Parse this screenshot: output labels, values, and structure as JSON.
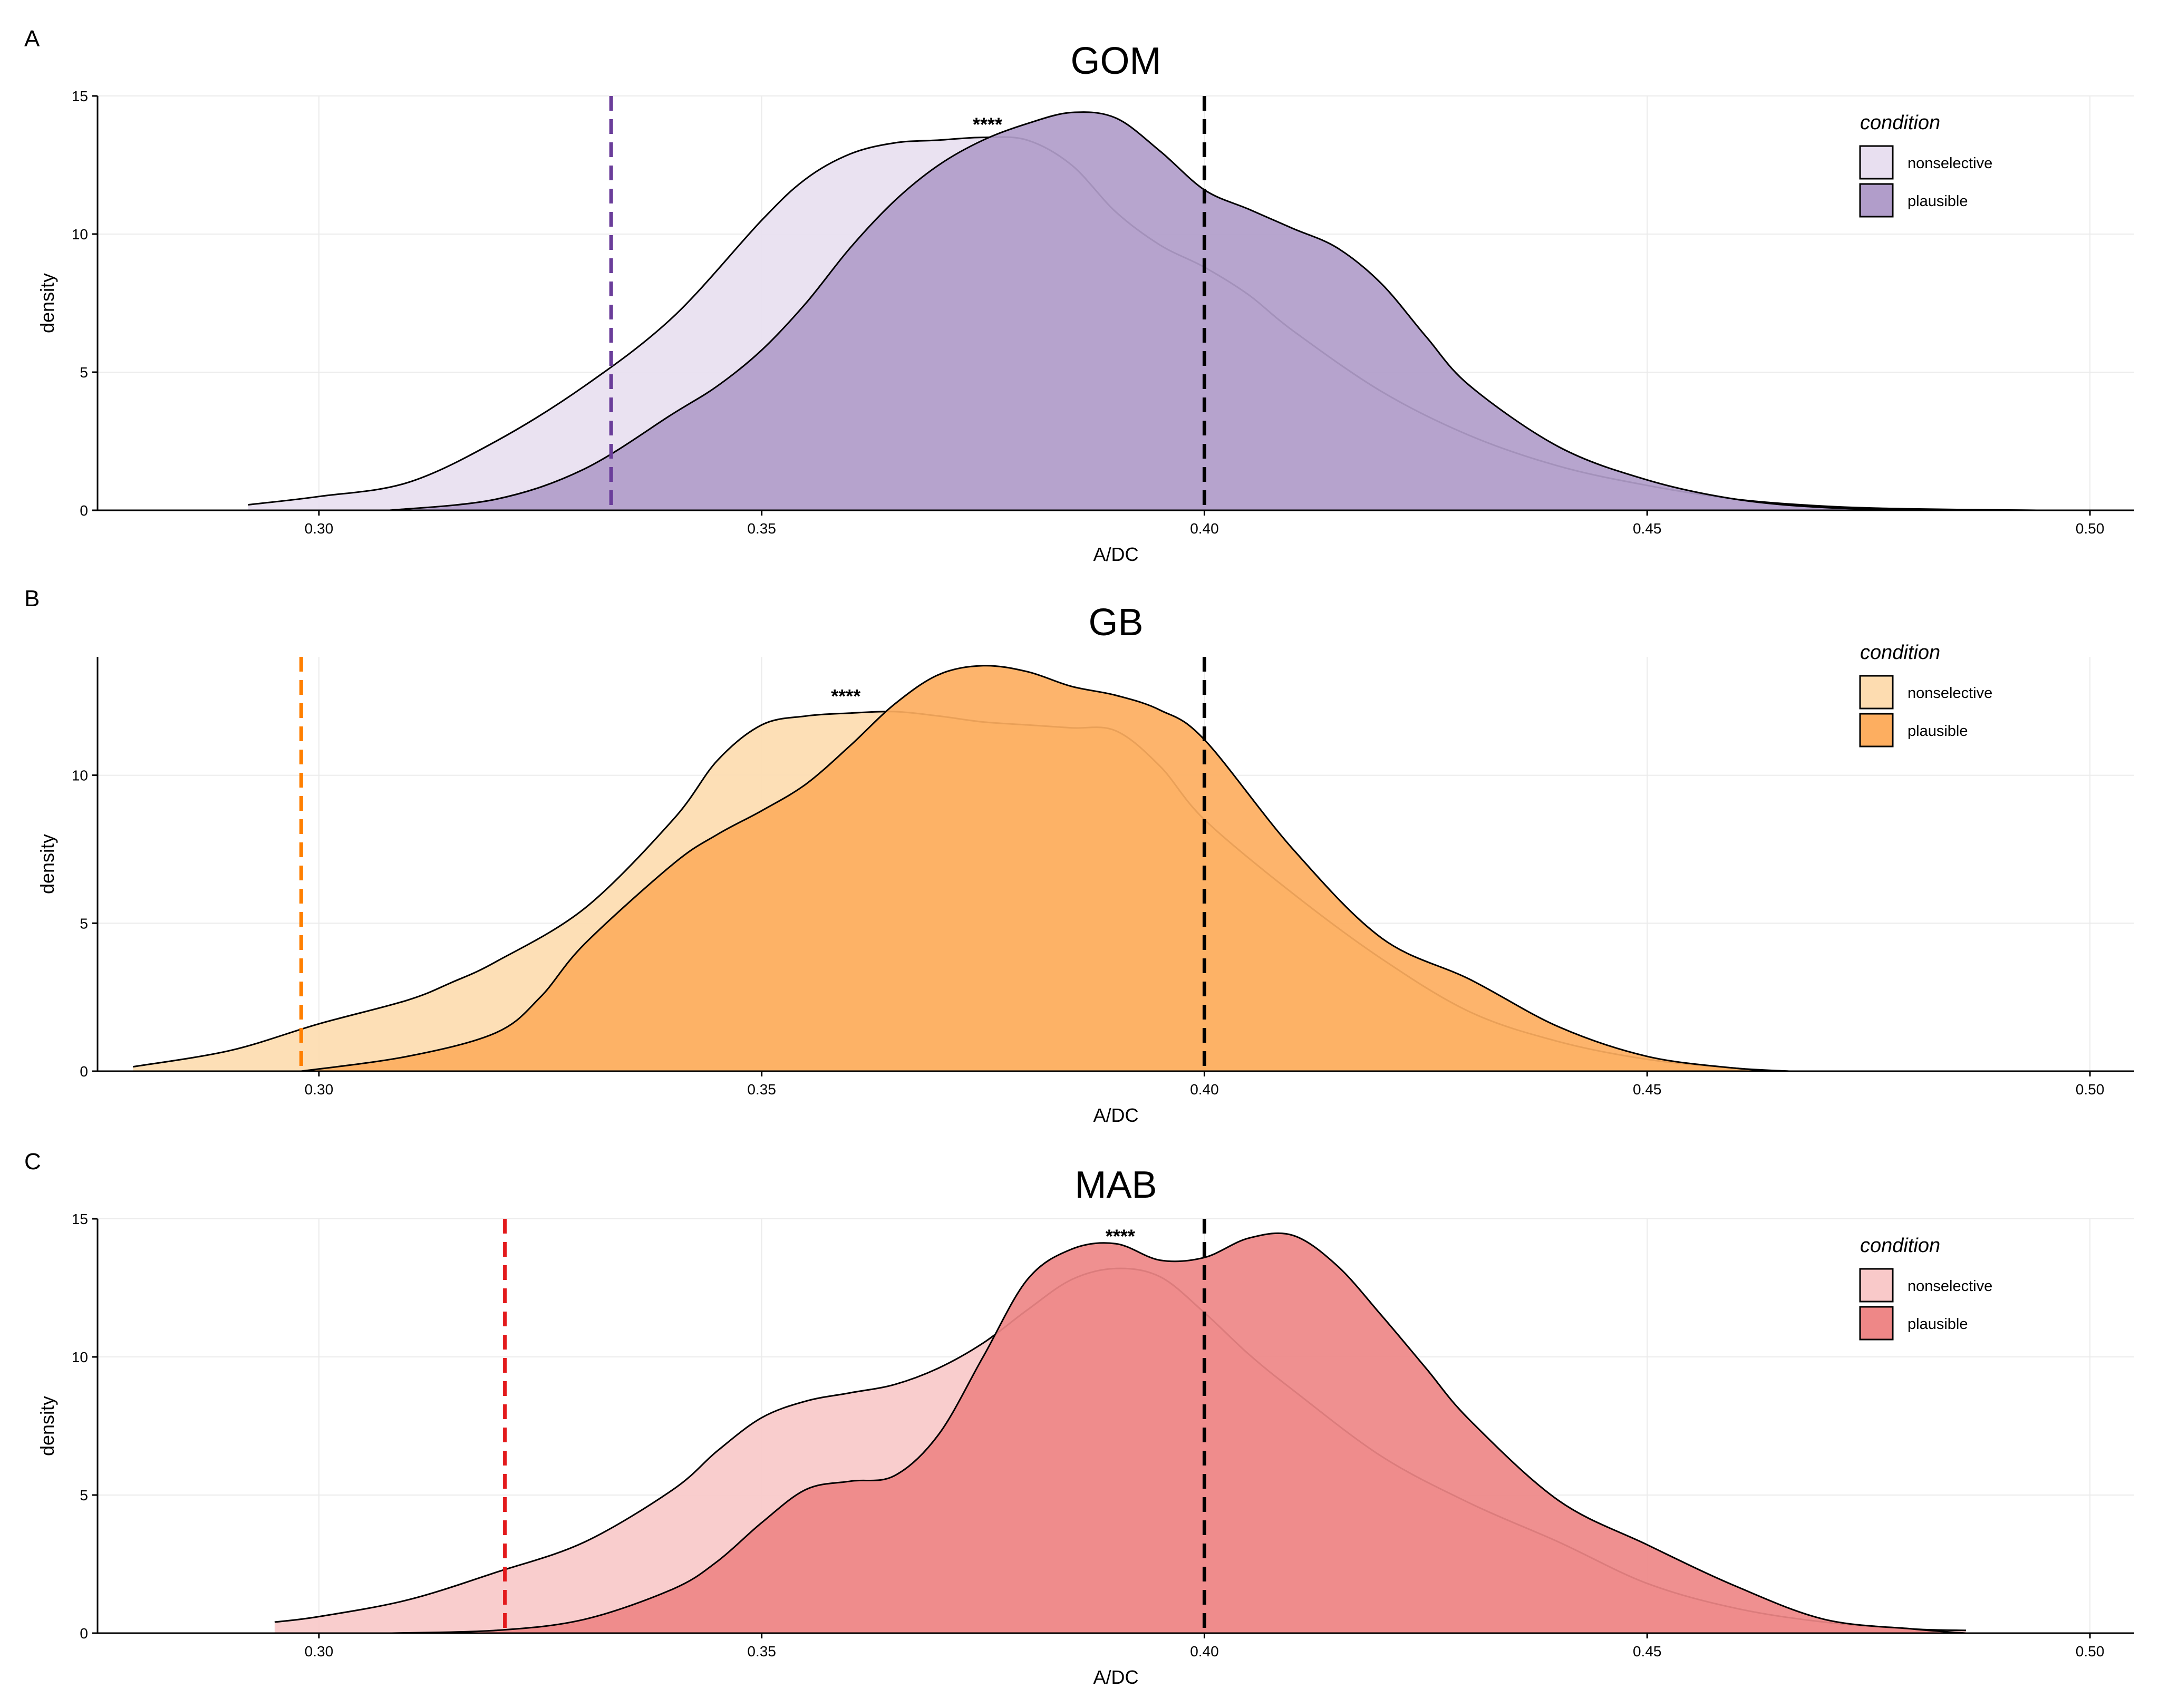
{
  "figure": {
    "x_axis_title": "A/DC",
    "y_axis_title": "density",
    "x_ticks": [
      0.3,
      0.35,
      0.4,
      0.45,
      0.5
    ],
    "x_tick_labels": [
      "0.30",
      "0.35",
      "0.40",
      "0.45",
      "0.50"
    ],
    "xlim": [
      0.275,
      0.505
    ],
    "reference_line_x": 0.4,
    "reference_line_color": "#000000",
    "legend_title": "condition",
    "legend_labels": [
      "nonselective",
      "plausible"
    ]
  },
  "chart_data": [
    {
      "type": "area",
      "panel": "A",
      "title": "GOM",
      "xlabel": "A/DC",
      "ylabel": "density",
      "ylim": [
        0,
        15
      ],
      "y_ticks": [
        0,
        5,
        10,
        15
      ],
      "y_tick_labels": [
        "0",
        "5",
        "10",
        "15"
      ],
      "annotation": "****",
      "annotation_position": [
        0.3755,
        14.0
      ],
      "threshold_x": 0.333,
      "threshold_color": "#6a3d9a",
      "series": [
        {
          "name": "nonselective",
          "color": "#e8dff0",
          "x": [
            0.292,
            0.3,
            0.31,
            0.32,
            0.33,
            0.34,
            0.35,
            0.355,
            0.36,
            0.365,
            0.37,
            0.375,
            0.38,
            0.385,
            0.39,
            0.395,
            0.4,
            0.405,
            0.41,
            0.42,
            0.43,
            0.44,
            0.45,
            0.46,
            0.47,
            0.48,
            0.494
          ],
          "y": [
            0.2,
            0.5,
            1.0,
            2.5,
            4.5,
            7.0,
            10.5,
            12.0,
            12.9,
            13.3,
            13.4,
            13.5,
            13.4,
            12.5,
            10.8,
            9.6,
            8.8,
            7.8,
            6.5,
            4.3,
            2.7,
            1.6,
            0.9,
            0.4,
            0.15,
            0.05,
            0.0
          ]
        },
        {
          "name": "plausible",
          "color": "#b19dca",
          "x": [
            0.308,
            0.32,
            0.33,
            0.34,
            0.345,
            0.35,
            0.355,
            0.36,
            0.365,
            0.37,
            0.375,
            0.38,
            0.385,
            0.39,
            0.395,
            0.4,
            0.405,
            0.41,
            0.415,
            0.42,
            0.425,
            0.43,
            0.44,
            0.45,
            0.46,
            0.47,
            0.48,
            0.494
          ],
          "y": [
            0.0,
            0.4,
            1.5,
            3.5,
            4.5,
            5.8,
            7.5,
            9.5,
            11.2,
            12.5,
            13.4,
            14.0,
            14.4,
            14.2,
            13.0,
            11.6,
            10.9,
            10.2,
            9.5,
            8.2,
            6.3,
            4.5,
            2.3,
            1.1,
            0.4,
            0.1,
            0.03,
            0.0
          ]
        }
      ]
    },
    {
      "type": "area",
      "panel": "B",
      "title": "GB",
      "xlabel": "A/DC",
      "ylabel": "density",
      "ylim": [
        0,
        14
      ],
      "y_ticks": [
        0,
        5,
        10
      ],
      "y_tick_labels": [
        "0",
        "5",
        "10"
      ],
      "annotation": "****",
      "annotation_position": [
        0.3595,
        12.7
      ],
      "threshold_x": 0.298,
      "threshold_color": "#ff7f00",
      "series": [
        {
          "name": "nonselective",
          "color": "#fddcb0",
          "x": [
            0.279,
            0.29,
            0.3,
            0.31,
            0.315,
            0.32,
            0.33,
            0.34,
            0.345,
            0.35,
            0.355,
            0.36,
            0.365,
            0.37,
            0.375,
            0.38,
            0.385,
            0.39,
            0.395,
            0.4,
            0.41,
            0.42,
            0.43,
            0.44,
            0.45,
            0.46,
            0.466
          ],
          "y": [
            0.15,
            0.7,
            1.6,
            2.4,
            3.0,
            3.7,
            5.5,
            8.5,
            10.5,
            11.7,
            12.0,
            12.1,
            12.15,
            12.0,
            11.8,
            11.7,
            11.6,
            11.5,
            10.3,
            8.5,
            6.0,
            3.8,
            2.0,
            1.0,
            0.4,
            0.1,
            0.0
          ]
        },
        {
          "name": "plausible",
          "color": "#fdae60",
          "x": [
            0.298,
            0.31,
            0.32,
            0.325,
            0.33,
            0.34,
            0.345,
            0.35,
            0.355,
            0.36,
            0.365,
            0.37,
            0.375,
            0.38,
            0.385,
            0.39,
            0.395,
            0.4,
            0.41,
            0.42,
            0.43,
            0.44,
            0.45,
            0.46,
            0.466
          ],
          "y": [
            0.0,
            0.5,
            1.3,
            2.5,
            4.3,
            7.0,
            8.0,
            8.8,
            9.7,
            11.0,
            12.4,
            13.4,
            13.7,
            13.5,
            13.0,
            12.7,
            12.2,
            11.2,
            7.5,
            4.5,
            3.1,
            1.5,
            0.5,
            0.1,
            0.0
          ]
        }
      ]
    },
    {
      "type": "area",
      "panel": "C",
      "title": "MAB",
      "xlabel": "A/DC",
      "ylabel": "density",
      "ylim": [
        0,
        15
      ],
      "y_ticks": [
        0,
        5,
        10,
        15
      ],
      "y_tick_labels": [
        "0",
        "5",
        "10",
        "15"
      ],
      "annotation": "****",
      "annotation_position": [
        0.3905,
        14.4
      ],
      "threshold_x": 0.321,
      "threshold_color": "#e31a1c",
      "series": [
        {
          "name": "nonselective",
          "color": "#f9c9c9",
          "x": [
            0.295,
            0.3,
            0.31,
            0.32,
            0.33,
            0.34,
            0.345,
            0.35,
            0.355,
            0.36,
            0.365,
            0.37,
            0.375,
            0.38,
            0.385,
            0.39,
            0.395,
            0.4,
            0.405,
            0.41,
            0.42,
            0.43,
            0.44,
            0.45,
            0.46,
            0.47,
            0.48,
            0.486
          ],
          "y": [
            0.4,
            0.6,
            1.2,
            2.2,
            3.3,
            5.2,
            6.6,
            7.8,
            8.4,
            8.7,
            9.0,
            9.6,
            10.5,
            11.7,
            12.8,
            13.2,
            12.9,
            11.6,
            10.1,
            8.8,
            6.4,
            4.7,
            3.3,
            1.8,
            0.9,
            0.4,
            0.15,
            0.1
          ]
        },
        {
          "name": "plausible",
          "color": "#ee8787",
          "x": [
            0.308,
            0.32,
            0.33,
            0.34,
            0.345,
            0.35,
            0.355,
            0.36,
            0.365,
            0.37,
            0.375,
            0.38,
            0.385,
            0.39,
            0.395,
            0.4,
            0.405,
            0.41,
            0.415,
            0.42,
            0.425,
            0.43,
            0.44,
            0.45,
            0.46,
            0.47,
            0.48,
            0.486
          ],
          "y": [
            0.0,
            0.1,
            0.5,
            1.6,
            2.6,
            4.0,
            5.2,
            5.5,
            5.7,
            7.2,
            10.0,
            12.8,
            13.9,
            14.1,
            13.5,
            13.6,
            14.3,
            14.4,
            13.3,
            11.5,
            9.6,
            7.7,
            4.8,
            3.2,
            1.7,
            0.5,
            0.15,
            0.0
          ]
        }
      ]
    }
  ]
}
